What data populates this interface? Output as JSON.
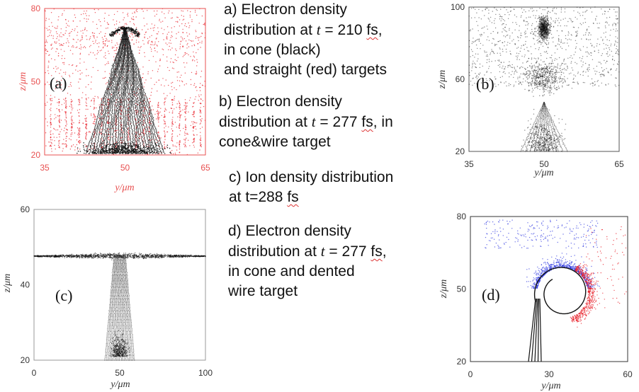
{
  "captions": {
    "a": {
      "line1": "a)  Electron density",
      "line2_pre": "distribution at ",
      "line2_t": "t",
      "line2_mid": " = 210 ",
      "line2_unit": "fs",
      "line2_post": ",",
      "line3": " in cone (black)",
      "line4": " and straight (red) targets"
    },
    "b": {
      "line1": "b) Electron density",
      "line2_pre": "distribution at ",
      "line2_t": "t",
      "line2_mid": " = 277 ",
      "line2_unit": "fs",
      "line2_post": ", in",
      "line3": "cone&wire target"
    },
    "c": {
      "line1": "c) Ion density distribution",
      "line2_pre": "at t=288 ",
      "line2_unit": "fs"
    },
    "d": {
      "line1": "d) Electron density",
      "line2_pre": "distribution at ",
      "line2_t": "t",
      "line2_mid": " = 277 ",
      "line2_unit": "fs",
      "line2_post": ",",
      "line3": "in cone and dented",
      "line4": "wire target"
    }
  },
  "colors": {
    "red": "#e8202a",
    "blue": "#2b35e0",
    "black": "#111111",
    "axis_red": "#e85050"
  },
  "chart_data": [
    {
      "id": "a",
      "type": "scatter",
      "panel_label": "(a)",
      "xlabel": "y/μm",
      "ylabel": "z/μm",
      "xlim": [
        35,
        65
      ],
      "ylim": [
        20,
        80
      ],
      "xticks": [
        35,
        50,
        65
      ],
      "yticks": [
        20,
        50,
        80
      ],
      "series": [
        {
          "color": "#111111"
        },
        {
          "color": "#e8202a"
        }
      ]
    },
    {
      "id": "b",
      "type": "scatter",
      "panel_label": "(b)",
      "xlabel": "y/μm",
      "ylabel": "z/μm",
      "xlim": [
        35,
        65
      ],
      "ylim": [
        20,
        100
      ],
      "xticks": [
        35,
        50,
        65
      ],
      "yticks": [
        20,
        60,
        100
      ],
      "series": [
        {
          "color": "#111111"
        }
      ]
    },
    {
      "id": "c",
      "type": "scatter",
      "panel_label": "(c)",
      "xlabel": "y/μm",
      "ylabel": "z/μm",
      "xlim": [
        0,
        100
      ],
      "ylim": [
        20,
        60
      ],
      "xticks": [
        0,
        50,
        100
      ],
      "yticks": [
        20,
        40,
        60
      ],
      "series": [
        {
          "color": "#111111"
        }
      ]
    },
    {
      "id": "d",
      "type": "scatter",
      "panel_label": "(d)",
      "xlabel": "y/μm",
      "ylabel": "z/μm",
      "xlim": [
        0,
        60
      ],
      "ylim": [
        20,
        80
      ],
      "xticks": [
        0,
        30,
        60
      ],
      "yticks": [
        20,
        50,
        80
      ],
      "series": [
        {
          "color": "#111111"
        },
        {
          "color": "#2b35e0"
        },
        {
          "color": "#e8202a"
        }
      ]
    }
  ]
}
